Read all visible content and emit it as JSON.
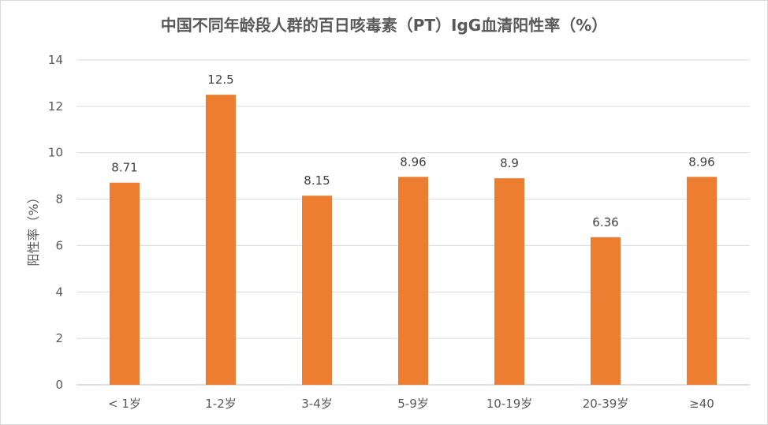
{
  "chart_data": {
    "type": "bar",
    "title": "中国不同年龄段人群的百日咳毒素（PT）IgG血清阳性率（%）",
    "ylabel": "阳性率（%）",
    "xlabel": "",
    "categories": [
      "< 1岁",
      "1-2岁",
      "3-4岁",
      "5-9岁",
      "10-19岁",
      "20-39岁",
      "≥40"
    ],
    "values": [
      8.71,
      12.5,
      8.15,
      8.96,
      8.9,
      6.36,
      8.96
    ],
    "data_labels": [
      "8.71",
      "12.5",
      "8.15",
      "8.96",
      "8.9",
      "6.36",
      "8.96"
    ],
    "ylim": [
      0,
      14
    ],
    "yticks": [
      0,
      2,
      4,
      6,
      8,
      10,
      12,
      14
    ],
    "grid": true,
    "legend": "none",
    "bar_color": "#ED7D31",
    "grid_color": "#D9D9D9",
    "text_color": "#595959"
  }
}
